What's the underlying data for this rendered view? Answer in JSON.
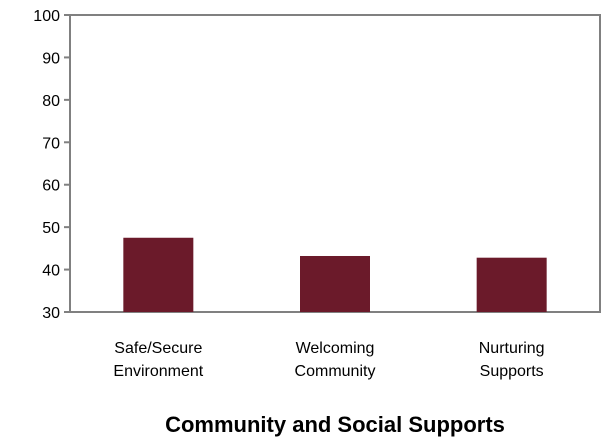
{
  "chart_data": {
    "type": "bar",
    "title": "",
    "xlabel": "Community and Social Supports",
    "ylabel": "",
    "categories": [
      [
        "Safe/Secure",
        "Environment"
      ],
      [
        "Welcoming",
        "Community"
      ],
      [
        "Nurturing",
        "Supports"
      ]
    ],
    "values": [
      47.5,
      43.2,
      42.8
    ],
    "ylim": [
      30,
      100
    ],
    "yticks": [
      "100",
      "90",
      "80",
      "70",
      "60",
      "50",
      "40",
      "30"
    ],
    "grid": false,
    "legend": "none",
    "bar_color": "#6b1a2a",
    "axis_color": "#808080"
  }
}
